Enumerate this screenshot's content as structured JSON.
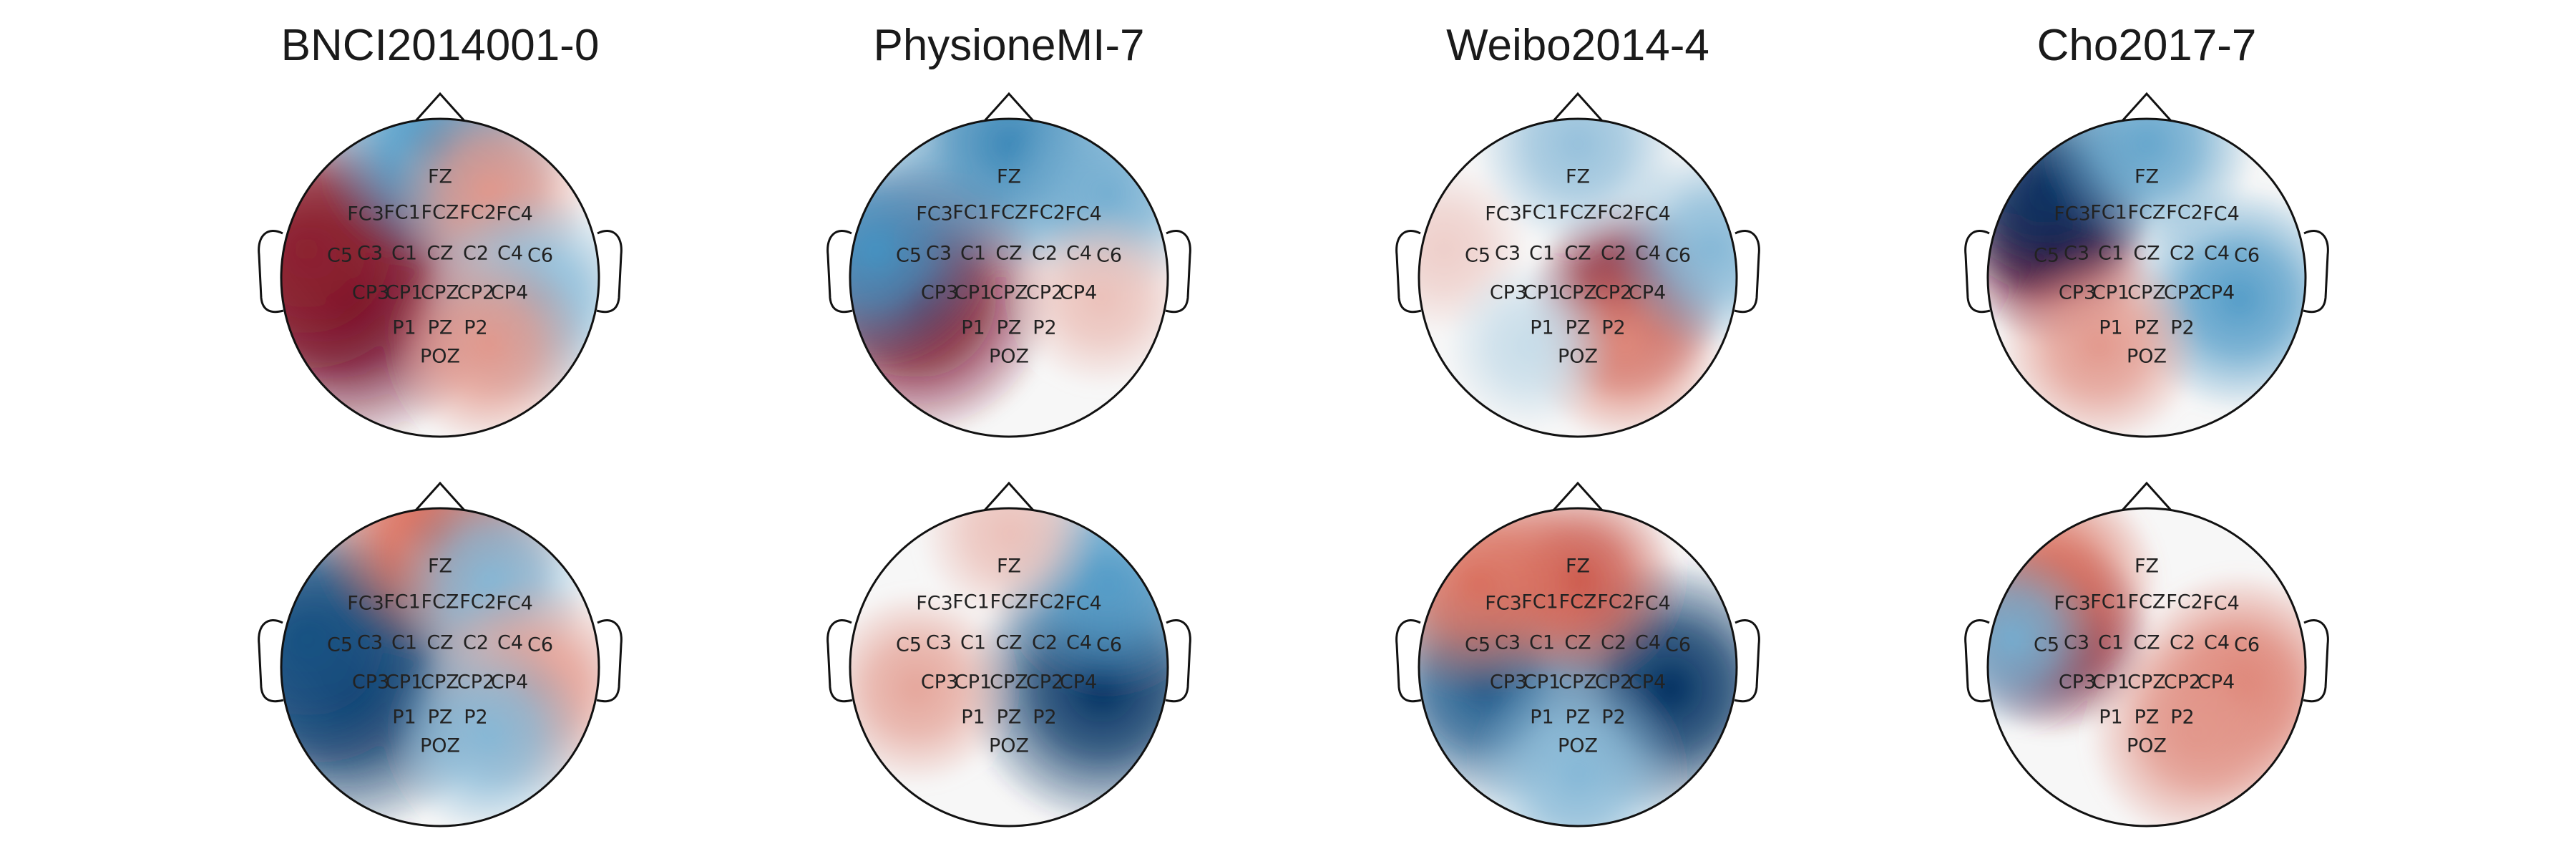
{
  "figure": {
    "columns": [
      {
        "title": "BNCI2014001-0"
      },
      {
        "title": "PhysioneMI-7"
      },
      {
        "title": "Weibo2014-4"
      },
      {
        "title": "Cho2017-7"
      }
    ],
    "electrode_labels": [
      "FZ",
      "FC3",
      "FC1",
      "FCZ",
      "FC2",
      "FC4",
      "C5",
      "C3",
      "C1",
      "CZ",
      "C2",
      "C4",
      "C6",
      "CP3",
      "CP1",
      "CPZ",
      "CP2",
      "CP4",
      "P1",
      "PZ",
      "P2",
      "POZ"
    ],
    "colormap": {
      "negative": "#053061",
      "neutral": "#f7f7f7",
      "positive": "#67001f"
    },
    "topomaps": [
      {
        "row": 0,
        "col": 0,
        "blobs": [
          {
            "electrode": "CP3",
            "value": 1.0,
            "spread": 1.0
          },
          {
            "electrode": "C5",
            "value": 0.85,
            "spread": 0.9
          },
          {
            "electrode": "FZ",
            "value": -0.55,
            "spread": 0.9
          },
          {
            "electrode": "FC2",
            "value": 0.35,
            "spread": 0.8
          },
          {
            "electrode": "CP4",
            "value": -0.35,
            "spread": 0.9
          },
          {
            "electrode": "P2",
            "value": 0.35,
            "spread": 0.8
          }
        ]
      },
      {
        "row": 0,
        "col": 1,
        "blobs": [
          {
            "electrode": "CP3",
            "value": 0.95,
            "spread": 0.9
          },
          {
            "electrode": "FZ",
            "value": -0.6,
            "spread": 0.9
          },
          {
            "electrode": "C5",
            "value": -0.55,
            "spread": 0.8
          },
          {
            "electrode": "FC4",
            "value": -0.4,
            "spread": 0.8
          },
          {
            "electrode": "CP4",
            "value": 0.2,
            "spread": 0.8
          }
        ]
      },
      {
        "row": 0,
        "col": 2,
        "blobs": [
          {
            "electrode": "CP2",
            "value": 0.95,
            "spread": 0.5
          },
          {
            "electrode": "P2",
            "value": 0.4,
            "spread": 0.7
          },
          {
            "electrode": "FZ",
            "value": -0.3,
            "spread": 0.9
          },
          {
            "electrode": "C6",
            "value": -0.35,
            "spread": 0.8
          },
          {
            "electrode": "C5",
            "value": 0.15,
            "spread": 0.8
          },
          {
            "electrode": "P1",
            "value": -0.15,
            "spread": 0.8
          }
        ]
      },
      {
        "row": 0,
        "col": 3,
        "blobs": [
          {
            "electrode": "C3",
            "value": 1.0,
            "spread": 0.5
          },
          {
            "electrode": "FC3",
            "value": -1.0,
            "spread": 0.6
          },
          {
            "electrode": "CP4",
            "value": -0.5,
            "spread": 0.8
          },
          {
            "electrode": "FZ",
            "value": -0.45,
            "spread": 0.8
          },
          {
            "electrode": "P1",
            "value": 0.35,
            "spread": 0.8
          }
        ]
      },
      {
        "row": 1,
        "col": 0,
        "blobs": [
          {
            "electrode": "CP3",
            "value": -1.0,
            "spread": 1.0
          },
          {
            "electrode": "C5",
            "value": -0.85,
            "spread": 0.9
          },
          {
            "electrode": "FZ",
            "value": 0.55,
            "spread": 0.9
          },
          {
            "electrode": "FC2",
            "value": -0.35,
            "spread": 0.8
          },
          {
            "electrode": "CP4",
            "value": 0.35,
            "spread": 0.9
          },
          {
            "electrode": "P2",
            "value": -0.35,
            "spread": 0.8
          }
        ]
      },
      {
        "row": 1,
        "col": 1,
        "blobs": [
          {
            "electrode": "CP4",
            "value": -1.0,
            "spread": 0.9
          },
          {
            "electrode": "FC4",
            "value": -0.5,
            "spread": 0.8
          },
          {
            "electrode": "CP3",
            "value": 0.3,
            "spread": 0.8
          },
          {
            "electrode": "FZ",
            "value": 0.2,
            "spread": 0.8
          }
        ]
      },
      {
        "row": 1,
        "col": 2,
        "blobs": [
          {
            "electrode": "CP4",
            "value": -1.0,
            "spread": 0.8
          },
          {
            "electrode": "CP3",
            "value": -0.8,
            "spread": 0.7
          },
          {
            "electrode": "FCZ",
            "value": 0.6,
            "spread": 0.6
          },
          {
            "electrode": "FC3",
            "value": 0.5,
            "spread": 0.8
          },
          {
            "electrode": "POZ",
            "value": -0.35,
            "spread": 0.9
          }
        ]
      },
      {
        "row": 1,
        "col": 3,
        "blobs": [
          {
            "electrode": "C3",
            "value": 1.0,
            "spread": 0.5
          },
          {
            "electrode": "FC3",
            "value": 0.5,
            "spread": 0.8
          },
          {
            "electrode": "CP4",
            "value": 0.45,
            "spread": 0.9
          },
          {
            "electrode": "C5",
            "value": -0.4,
            "spread": 0.6
          },
          {
            "electrode": "P2",
            "value": 0.35,
            "spread": 0.9
          }
        ]
      }
    ]
  }
}
